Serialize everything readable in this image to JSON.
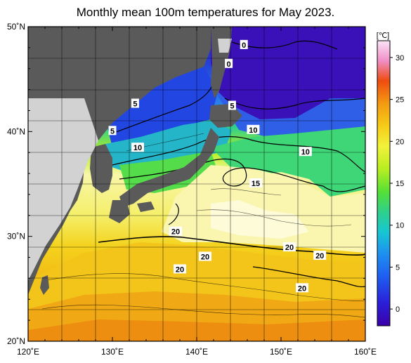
{
  "title": "Monthly mean 100m temperatures for May 2023.",
  "map": {
    "lat_labels": [
      {
        "lat": 50,
        "text": "50˚N"
      },
      {
        "lat": 40,
        "text": "40˚N"
      },
      {
        "lat": 30,
        "text": "30˚N"
      },
      {
        "lat": 20,
        "text": "20˚N"
      }
    ],
    "lon_labels": [
      {
        "lon": 120,
        "text": "120˚E"
      },
      {
        "lon": 130,
        "text": "130˚E"
      },
      {
        "lon": 140,
        "text": "140˚E"
      },
      {
        "lon": 150,
        "text": "150˚E"
      },
      {
        "lon": 160,
        "text": "160˚E"
      }
    ],
    "contour_labels": [
      {
        "lon": 145.6,
        "lat": 48.2,
        "text": "0"
      },
      {
        "lon": 143.8,
        "lat": 46.4,
        "text": "0"
      },
      {
        "lon": 132.7,
        "lat": 42.6,
        "text": "5"
      },
      {
        "lon": 130.0,
        "lat": 40.0,
        "text": "5"
      },
      {
        "lon": 144.2,
        "lat": 42.4,
        "text": "5"
      },
      {
        "lon": 133.0,
        "lat": 38.4,
        "text": "10"
      },
      {
        "lon": 146.7,
        "lat": 40.1,
        "text": "10"
      },
      {
        "lon": 152.9,
        "lat": 38.0,
        "text": "10"
      },
      {
        "lon": 147.0,
        "lat": 35.0,
        "text": "15"
      },
      {
        "lon": 137.5,
        "lat": 30.4,
        "text": "20"
      },
      {
        "lon": 141.0,
        "lat": 28.0,
        "text": "20"
      },
      {
        "lon": 138.0,
        "lat": 26.8,
        "text": "20"
      },
      {
        "lon": 151.0,
        "lat": 28.9,
        "text": "20"
      },
      {
        "lon": 154.6,
        "lat": 28.1,
        "text": "20"
      },
      {
        "lon": 152.5,
        "lat": 25.0,
        "text": "20"
      }
    ]
  },
  "colorbar": {
    "unit": "[℃]",
    "ticks": [
      {
        "value": 0,
        "text": "0"
      },
      {
        "value": 5,
        "text": "5"
      },
      {
        "value": 10,
        "text": "10"
      },
      {
        "value": 15,
        "text": "15"
      },
      {
        "value": 20,
        "text": "20"
      },
      {
        "value": 25,
        "text": "25"
      },
      {
        "value": 30,
        "text": "30"
      }
    ],
    "range": [
      -2,
      32
    ],
    "colors": [
      "#3a00a8",
      "#1b3cf5",
      "#1f8ef0",
      "#17c7d2",
      "#2fd08a",
      "#55e035",
      "#b8ee22",
      "#f2f23a",
      "#f6cc18",
      "#f39a12",
      "#ee4c10",
      "#f08fc8",
      "#fce4f6"
    ]
  }
}
